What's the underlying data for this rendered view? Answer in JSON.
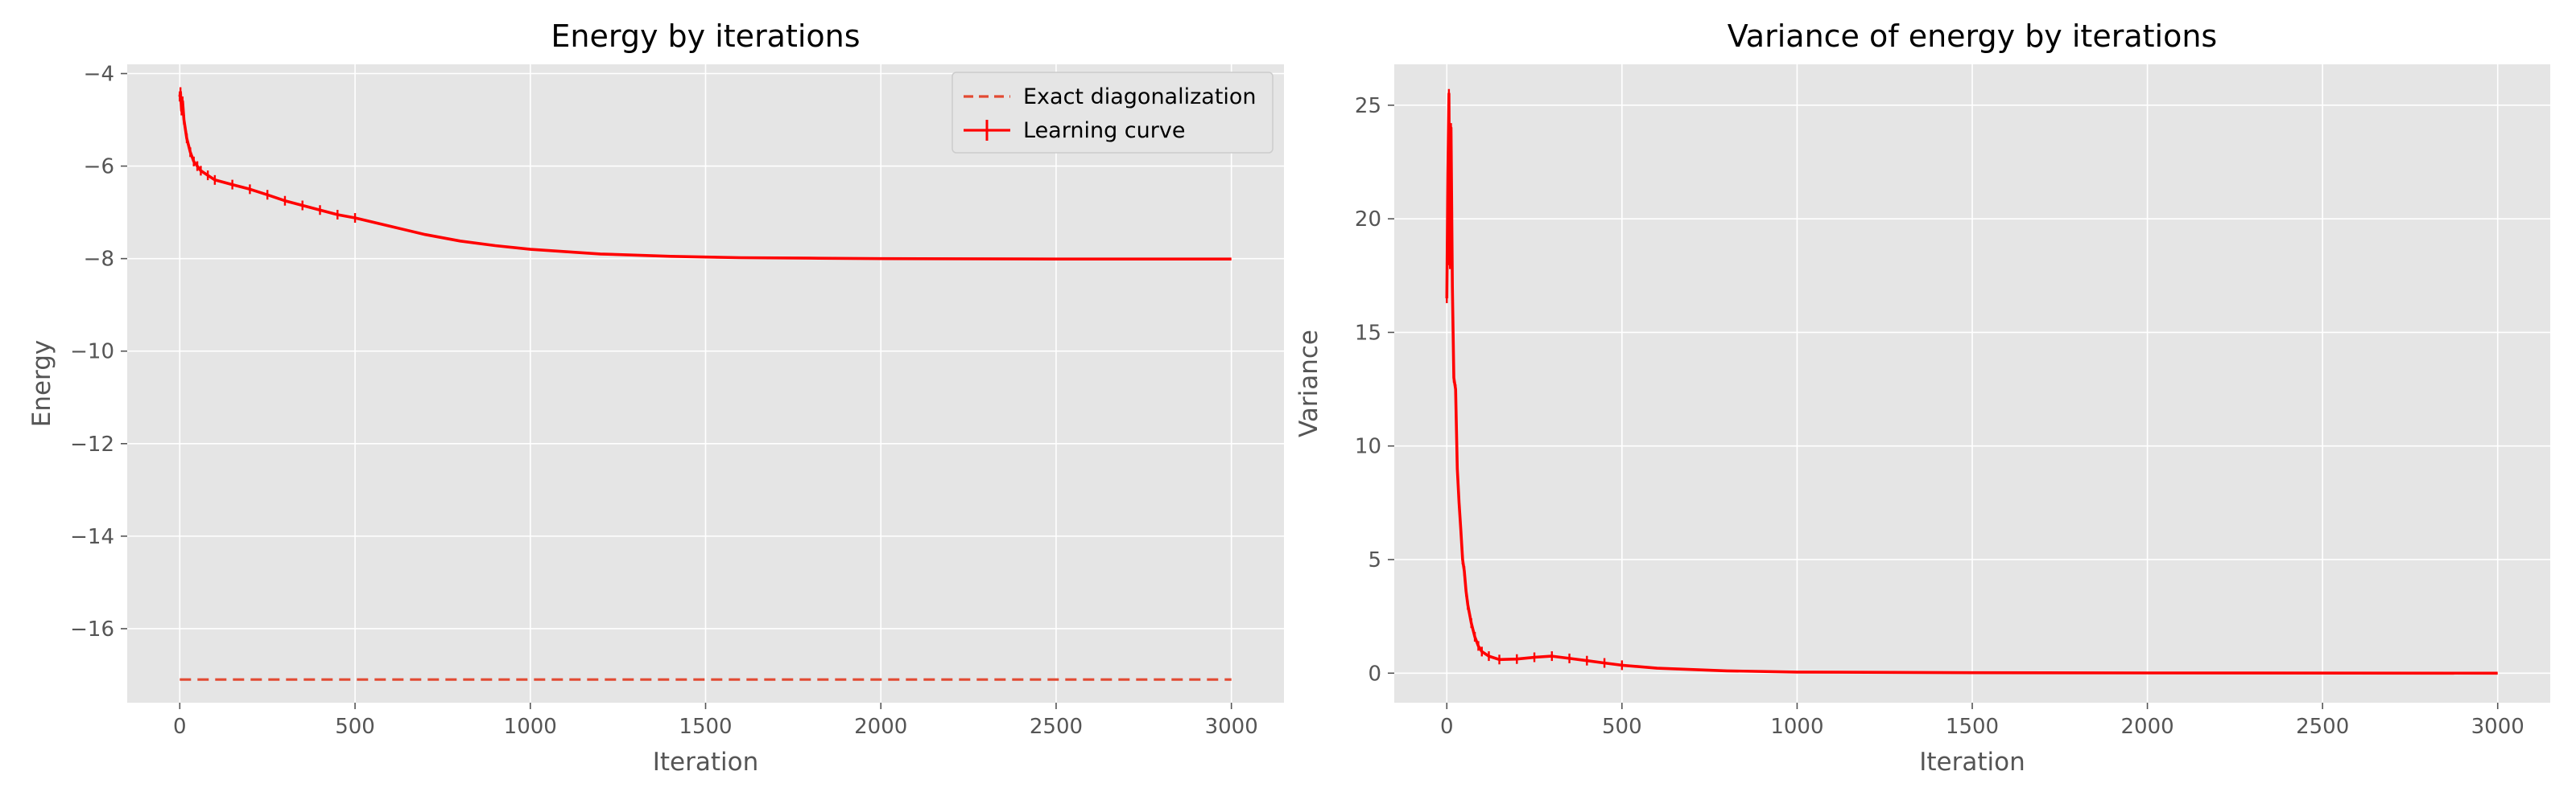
{
  "chart_data": [
    {
      "type": "line",
      "title": "Energy by iterations",
      "xlabel": "Iteration",
      "ylabel": "Energy",
      "xlim": [
        -150,
        3150
      ],
      "ylim": [
        -17.6,
        -3.8
      ],
      "xticks": [
        0,
        500,
        1000,
        1500,
        2000,
        2500,
        3000
      ],
      "yticks": [
        -16,
        -14,
        -12,
        -10,
        -8,
        -6,
        -4
      ],
      "xtick_labels": [
        "0",
        "500",
        "1000",
        "1500",
        "2000",
        "2500",
        "3000"
      ],
      "ytick_labels": [
        "−16",
        "−14",
        "−12",
        "−10",
        "−8",
        "−6",
        "−4"
      ],
      "grid": true,
      "legend": "top-right",
      "series": [
        {
          "name": "Exact diagonalization",
          "style": "dashed",
          "color": "#e24a33",
          "x": [
            0,
            3000
          ],
          "y": [
            -17.1,
            -17.1
          ]
        },
        {
          "name": "Learning curve",
          "style": "solid-errorbar",
          "color": "#ff0000",
          "x": [
            0,
            2,
            5,
            8,
            12,
            20,
            30,
            40,
            50,
            60,
            80,
            100,
            150,
            200,
            250,
            300,
            350,
            400,
            450,
            500,
            600,
            700,
            800,
            900,
            1000,
            1200,
            1400,
            1600,
            1800,
            2000,
            2500,
            3000
          ],
          "y": [
            -4.5,
            -4.4,
            -4.8,
            -4.6,
            -5.0,
            -5.4,
            -5.7,
            -5.9,
            -6.0,
            -6.1,
            -6.2,
            -6.3,
            -6.4,
            -6.5,
            -6.62,
            -6.75,
            -6.85,
            -6.95,
            -7.05,
            -7.12,
            -7.3,
            -7.48,
            -7.62,
            -7.72,
            -7.8,
            -7.9,
            -7.95,
            -7.98,
            -7.99,
            -8.0,
            -8.01,
            -8.01
          ]
        }
      ]
    },
    {
      "type": "line",
      "title": "Variance of energy by iterations",
      "xlabel": "Iteration",
      "ylabel": "Variance",
      "xlim": [
        -150,
        3150
      ],
      "ylim": [
        -1.3,
        26.8
      ],
      "xticks": [
        0,
        500,
        1000,
        1500,
        2000,
        2500,
        3000
      ],
      "yticks": [
        0,
        5,
        10,
        15,
        20,
        25
      ],
      "xtick_labels": [
        "0",
        "500",
        "1000",
        "1500",
        "2000",
        "2500",
        "3000"
      ],
      "ytick_labels": [
        "0",
        "5",
        "10",
        "15",
        "20",
        "25"
      ],
      "grid": true,
      "series": [
        {
          "style": "solid-errorbar",
          "color": "#ff0000",
          "x": [
            0,
            3,
            6,
            9,
            12,
            16,
            20,
            25,
            30,
            35,
            40,
            45,
            50,
            55,
            60,
            70,
            80,
            90,
            100,
            120,
            150,
            200,
            250,
            300,
            350,
            400,
            450,
            500,
            600,
            800,
            1000,
            1500,
            2000,
            3000
          ],
          "y": [
            16.5,
            22,
            25.5,
            18,
            24,
            17,
            13,
            12.5,
            9,
            7.5,
            6.3,
            5,
            4.5,
            3.6,
            3.0,
            2.2,
            1.6,
            1.2,
            0.95,
            0.75,
            0.6,
            0.62,
            0.7,
            0.75,
            0.65,
            0.55,
            0.45,
            0.35,
            0.22,
            0.1,
            0.05,
            0.02,
            0.01,
            0.0
          ]
        }
      ]
    }
  ]
}
